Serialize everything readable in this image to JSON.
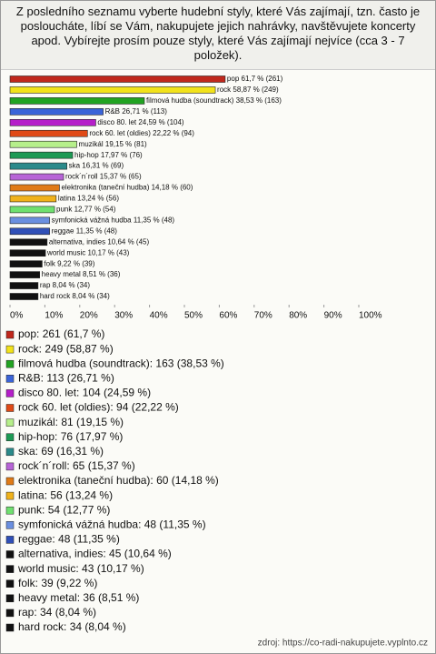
{
  "chart_data": {
    "type": "hbar",
    "title": "Z posledního seznamu vyberte hudební styly, které Vás zajímají, tzn. často je posloucháte, líbí se Vám, nakupujete jejich nahrávky, navštěvujete koncerty apod. Vybírejte prosím pouze styly, které Vás zajímají nejvíce (cca 3 - 7 položek).",
    "categories": [
      "pop",
      "rock",
      "filmová hudba (soundtrack)",
      "R&B",
      "disco 80. let",
      "rock 60. let (oldies)",
      "muzikál",
      "hip-hop",
      "ska",
      "rock´n´roll",
      "elektronika (taneční hudba)",
      "latina",
      "punk",
      "symfonická vážná hudba",
      "reggae",
      "alternativa, indies",
      "world music",
      "folk",
      "heavy metal",
      "rap",
      "hard rock"
    ],
    "values": [
      61.7,
      58.87,
      38.53,
      26.71,
      24.59,
      22.22,
      19.15,
      17.97,
      16.31,
      15.37,
      14.18,
      13.24,
      12.77,
      11.35,
      11.35,
      10.64,
      10.17,
      9.22,
      8.51,
      8.04,
      8.04
    ],
    "value_labels": [
      "pop 61,7 % (261)",
      "rock 58,87 % (249)",
      "filmová hudba (soundtrack) 38,53 % (163)",
      "R&B 26,71 % (113)",
      "disco 80. let 24,59 % (104)",
      "rock 60. let (oldies) 22,22 % (94)",
      "muzikál 19,15 % (81)",
      "hip-hop 17,97 % (76)",
      "ska 16,31 % (69)",
      "rock´n´roll 15,37 % (65)",
      "elektronika (taneční hudba) 14,18 % (60)",
      "latina 13,24 % (56)",
      "punk 12,77 % (54)",
      "symfonická vážná hudba 11,35 % (48)",
      "reggae 11,35 % (48)",
      "alternativa, indies 10,64 % (45)",
      "world music 10,17 % (43)",
      "folk 9,22 % (39)",
      "heavy metal 8,51 % (36)",
      "rap 8,04 % (34)",
      "hard rock 8,04 % (34)"
    ],
    "legend_labels": [
      "pop: 261 (61,7 %)",
      "rock: 249 (58,87 %)",
      "filmová hudba (soundtrack): 163 (38,53 %)",
      "R&B: 113 (26,71 %)",
      "disco 80. let: 104 (24,59 %)",
      "rock 60. let (oldies): 94 (22,22 %)",
      "muzikál: 81 (19,15 %)",
      "hip-hop: 76 (17,97 %)",
      "ska: 69 (16,31 %)",
      "rock´n´roll: 65 (15,37 %)",
      "elektronika (taneční hudba): 60 (14,18 %)",
      "latina: 56 (13,24 %)",
      "punk: 54 (12,77 %)",
      "symfonická vážná hudba: 48 (11,35 %)",
      "reggae: 48 (11,35 %)",
      "alternativa, indies: 45 (10,64 %)",
      "world music: 43 (10,17 %)",
      "folk: 39 (9,22 %)",
      "heavy metal: 36 (8,51 %)",
      "rap: 34 (8,04 %)",
      "hard rock: 34 (8,04 %)"
    ],
    "colors": [
      "#c0281c",
      "#f2e21a",
      "#21a321",
      "#3b64d8",
      "#b51fc9",
      "#e04a16",
      "#b6ef8a",
      "#1d9a54",
      "#2a8a8a",
      "#b764d6",
      "#e07a16",
      "#f0b21a",
      "#6fe06f",
      "#6a8fe0",
      "#3050b8",
      "#111111",
      "#111111",
      "#111111",
      "#111111",
      "#111111",
      "#111111"
    ],
    "xlim": [
      0,
      100
    ],
    "xticks": [
      {
        "value": 0,
        "label": "0%"
      },
      {
        "value": 10,
        "label": "10%"
      },
      {
        "value": 20,
        "label": "20%"
      },
      {
        "value": 30,
        "label": "30%"
      },
      {
        "value": 40,
        "label": "40%"
      },
      {
        "value": 50,
        "label": "50%"
      },
      {
        "value": 60,
        "label": "60%"
      },
      {
        "value": 70,
        "label": "70%"
      },
      {
        "value": 80,
        "label": "80%"
      },
      {
        "value": 90,
        "label": "90%"
      },
      {
        "value": 100,
        "label": "100%"
      }
    ],
    "source": "zdroj: https://co-radi-nakupujete.vyplnto.cz"
  }
}
